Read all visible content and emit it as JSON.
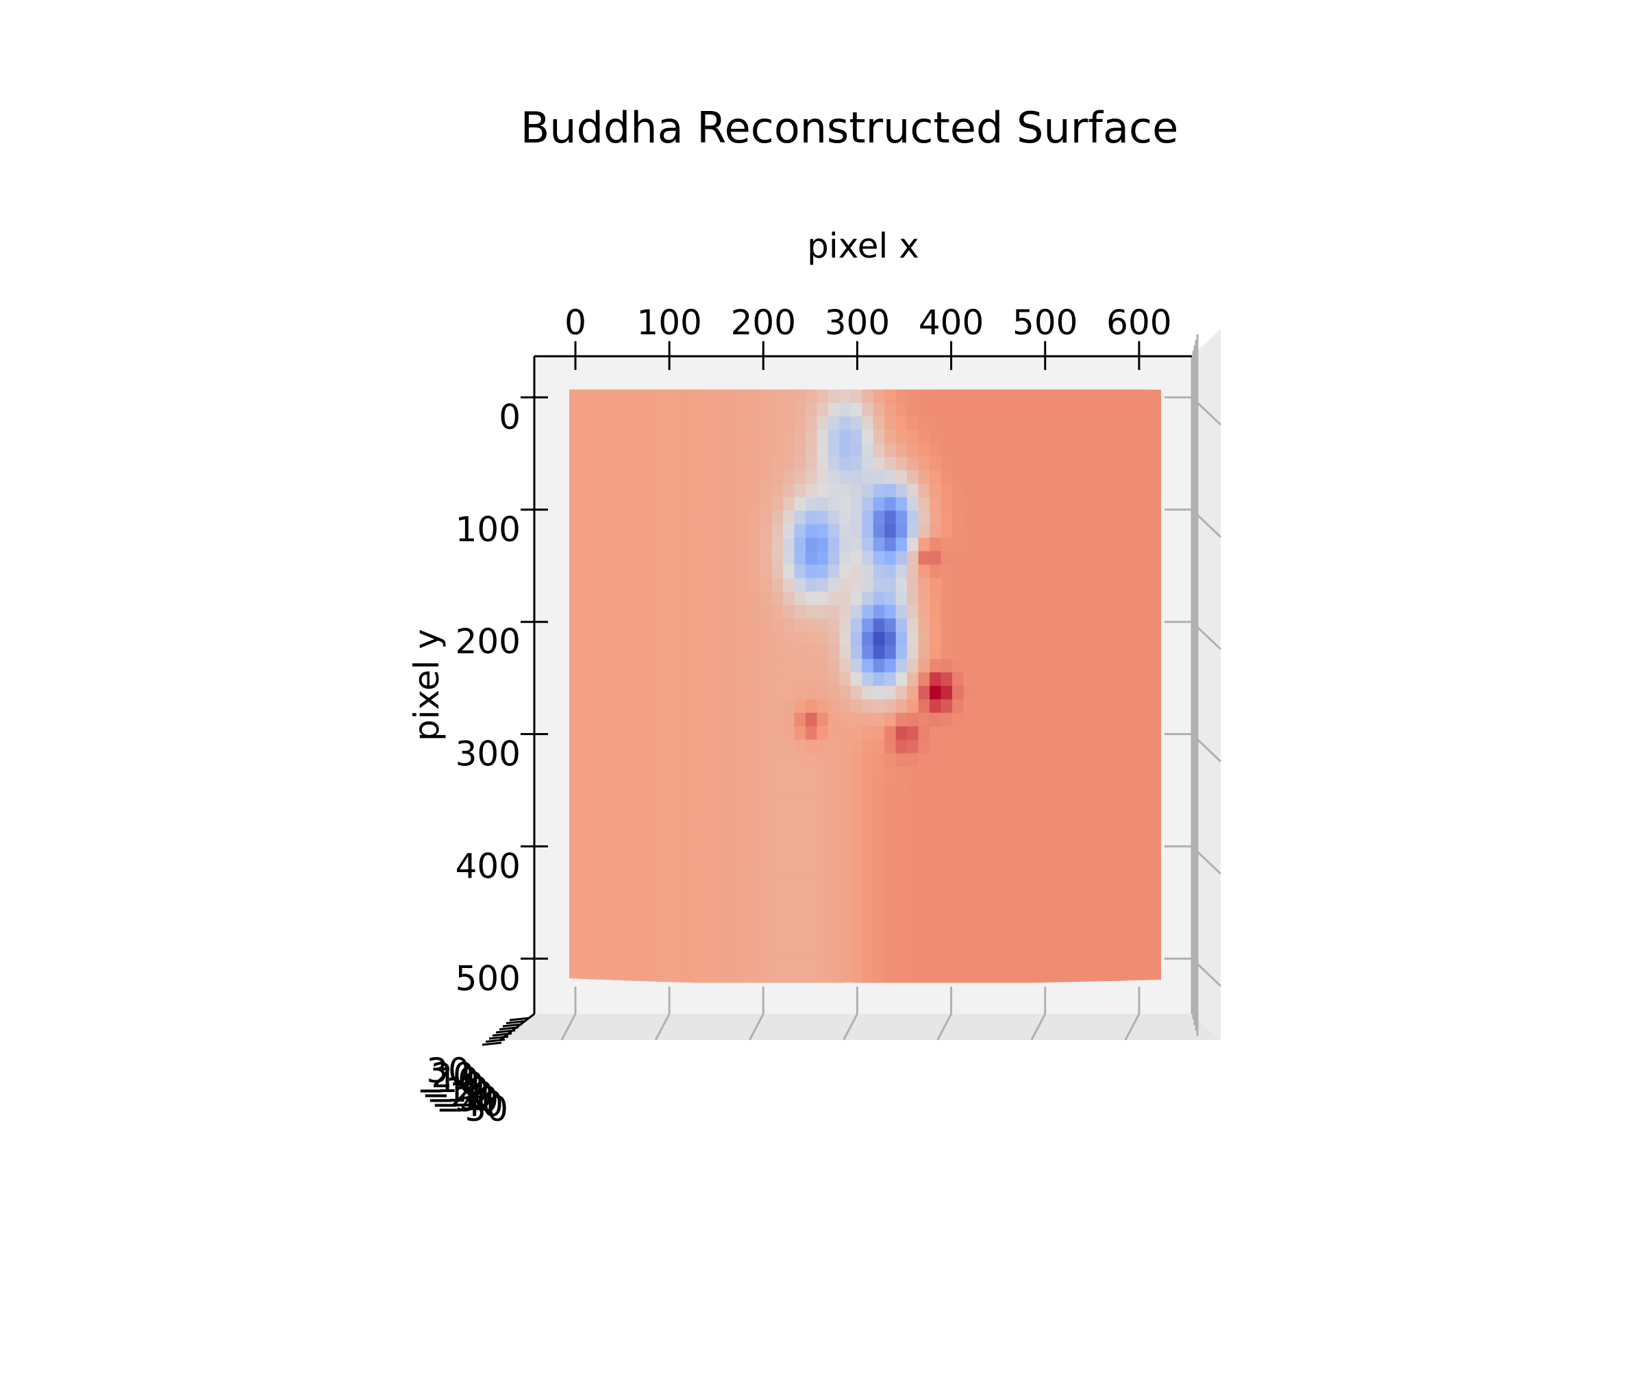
{
  "chart_data": {
    "type": "surface",
    "title": "Buddha Reconstructed Surface",
    "xlabel": "pixel x",
    "ylabel": "pixel y",
    "zlabel": "",
    "x_ticks": [
      0,
      100,
      200,
      300,
      400,
      500,
      600
    ],
    "y_ticks": [
      0,
      100,
      200,
      300,
      400,
      500
    ],
    "z_ticks": [
      "−50",
      "−40",
      "−30",
      "−20",
      "−10",
      "0",
      "10",
      "20",
      "30"
    ],
    "xlim": [
      -45,
      655
    ],
    "ylim": [
      -35,
      555
    ],
    "surface_x_range": [
      -7,
      622
    ],
    "surface_y_range": [
      -7,
      518
    ],
    "view": "top-down",
    "colormap": "coolwarm",
    "colors": {
      "background": "#ffffff",
      "pane": "#f2f2f2",
      "grid": "#b0b0b0",
      "cold": "#3b4cc0",
      "neutral": "#dddcdc",
      "warm": "#b40426"
    },
    "surface_features": [
      {
        "kind": "depression",
        "x": 335,
        "y": 115,
        "value": -45
      },
      {
        "kind": "depression",
        "x": 255,
        "y": 135,
        "value": -30
      },
      {
        "kind": "depression",
        "x": 325,
        "y": 218,
        "value": -50
      },
      {
        "kind": "depression",
        "x": 290,
        "y": 40,
        "value": -20
      },
      {
        "kind": "peak",
        "x": 370,
        "y": 140,
        "value": 25
      },
      {
        "kind": "peak",
        "x": 385,
        "y": 262,
        "value": 30
      },
      {
        "kind": "peak",
        "x": 250,
        "y": 290,
        "value": 22
      },
      {
        "kind": "peak",
        "x": 350,
        "y": 300,
        "value": 20
      }
    ]
  }
}
